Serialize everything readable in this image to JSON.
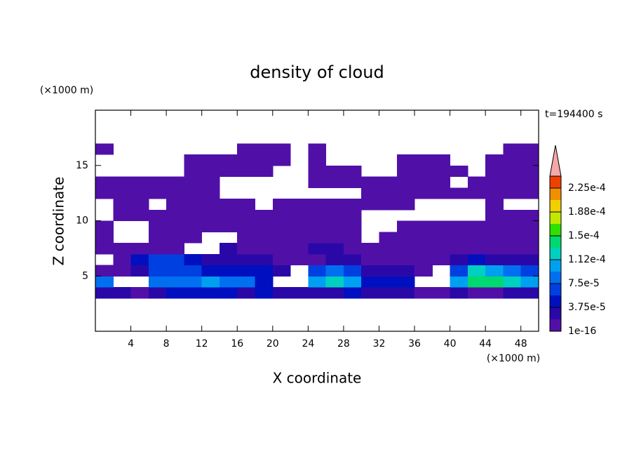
{
  "chart_data": {
    "type": "contour",
    "title": "density of cloud",
    "x_label": "X coordinate",
    "y_label": "Z coordinate",
    "x_unit": "(×1000 m)",
    "y_unit": "(×1000 m)",
    "annotation": "t=194400 s",
    "xlim": [
      0,
      50
    ],
    "ylim": [
      0,
      20
    ],
    "xticks": [
      4,
      8,
      12,
      16,
      20,
      24,
      28,
      32,
      36,
      40,
      44,
      48
    ],
    "yticks": [
      5,
      10,
      15
    ],
    "x": [
      1,
      3,
      5,
      7,
      9,
      11,
      13,
      15,
      17,
      19,
      21,
      23,
      25,
      27,
      29,
      31,
      33,
      35,
      37,
      39,
      41,
      43,
      45,
      47,
      49
    ],
    "y": [
      3.5,
      4.5,
      5.5,
      6.5,
      7.5,
      8.5,
      9.5,
      10.5,
      11.5,
      12.5,
      13.5,
      14.5,
      15.5,
      16.5
    ],
    "values": [
      [
        2.5e-05,
        2.5e-05,
        1e-05,
        2.5e-05,
        4.5e-05,
        4.5e-05,
        4.5e-05,
        4.5e-05,
        2.5e-05,
        4.5e-05,
        2.5e-05,
        2.5e-05,
        2.5e-05,
        2.5e-05,
        4.5e-05,
        2.5e-05,
        2.5e-05,
        2.5e-05,
        1e-05,
        1e-05,
        2.5e-05,
        1e-05,
        1e-05,
        2.5e-05,
        2.5e-05
      ],
      [
        8e-05,
        null,
        null,
        8e-05,
        8e-05,
        8e-05,
        0.0001,
        8e-05,
        8e-05,
        4.5e-05,
        null,
        null,
        0.0001,
        0.00012,
        0.0001,
        4.5e-05,
        4.5e-05,
        4.5e-05,
        null,
        null,
        0.0001,
        0.00014,
        0.00014,
        0.00012,
        0.0001
      ],
      [
        1e-05,
        1e-05,
        2.5e-05,
        6e-05,
        6e-05,
        6e-05,
        4.5e-05,
        4.5e-05,
        4.5e-05,
        4.5e-05,
        2.5e-05,
        null,
        6e-05,
        8e-05,
        6e-05,
        2.5e-05,
        2.5e-05,
        2.5e-05,
        1e-05,
        null,
        6e-05,
        0.00012,
        0.0001,
        8e-05,
        6e-05
      ],
      [
        null,
        1e-05,
        4.5e-05,
        6e-05,
        6e-05,
        4.5e-05,
        2.5e-05,
        2.5e-05,
        2.5e-05,
        2.5e-05,
        1e-05,
        1e-05,
        1e-05,
        2.5e-05,
        2.5e-05,
        1e-05,
        1e-05,
        1e-05,
        1e-05,
        1e-05,
        2.5e-05,
        4.5e-05,
        2.5e-05,
        2.5e-05,
        2.5e-05
      ],
      [
        1e-05,
        1e-05,
        1e-05,
        1e-05,
        1e-05,
        null,
        null,
        2.5e-05,
        1e-05,
        1e-05,
        1e-05,
        1e-05,
        2.5e-05,
        2.5e-05,
        1e-05,
        1e-05,
        1e-05,
        1e-05,
        1e-05,
        1e-05,
        1e-05,
        1e-05,
        1e-05,
        1e-05,
        1e-05
      ],
      [
        1e-05,
        null,
        null,
        1e-05,
        1e-05,
        1e-05,
        null,
        null,
        1e-05,
        1e-05,
        1e-05,
        1e-05,
        1e-05,
        1e-05,
        1e-05,
        null,
        1e-05,
        1e-05,
        1e-05,
        1e-05,
        1e-05,
        1e-05,
        1e-05,
        1e-05,
        1e-05
      ],
      [
        1e-05,
        null,
        null,
        1e-05,
        1e-05,
        1e-05,
        1e-05,
        1e-05,
        1e-05,
        1e-05,
        1e-05,
        1e-05,
        1e-05,
        1e-05,
        1e-05,
        null,
        null,
        1e-05,
        1e-05,
        1e-05,
        1e-05,
        1e-05,
        1e-05,
        1e-05,
        1e-05
      ],
      [
        null,
        1e-05,
        1e-05,
        1e-05,
        1e-05,
        1e-05,
        1e-05,
        1e-05,
        1e-05,
        1e-05,
        1e-05,
        1e-05,
        1e-05,
        1e-05,
        1e-05,
        null,
        null,
        null,
        null,
        null,
        null,
        null,
        1e-05,
        1e-05,
        1e-05
      ],
      [
        null,
        1e-05,
        1e-05,
        null,
        1e-05,
        1e-05,
        1e-05,
        1e-05,
        1e-05,
        null,
        1e-05,
        1e-05,
        1e-05,
        1e-05,
        1e-05,
        1e-05,
        1e-05,
        1e-05,
        null,
        null,
        null,
        null,
        1e-05,
        null,
        null
      ],
      [
        1e-05,
        1e-05,
        1e-05,
        1e-05,
        1e-05,
        1e-05,
        1e-05,
        null,
        null,
        null,
        null,
        null,
        null,
        null,
        null,
        1e-05,
        1e-05,
        1e-05,
        1e-05,
        1e-05,
        1e-05,
        1e-05,
        1e-05,
        1e-05,
        1e-05
      ],
      [
        1e-05,
        1e-05,
        1e-05,
        1e-05,
        1e-05,
        1e-05,
        1e-05,
        null,
        null,
        null,
        null,
        null,
        1e-05,
        1e-05,
        1e-05,
        1e-05,
        1e-05,
        1e-05,
        1e-05,
        1e-05,
        null,
        1e-05,
        1e-05,
        1e-05,
        1e-05
      ],
      [
        null,
        null,
        null,
        null,
        null,
        1e-05,
        1e-05,
        1e-05,
        1e-05,
        1e-05,
        null,
        null,
        1e-05,
        1e-05,
        1e-05,
        null,
        null,
        1e-05,
        1e-05,
        1e-05,
        1e-05,
        null,
        1e-05,
        1e-05,
        1e-05
      ],
      [
        null,
        null,
        null,
        null,
        null,
        1e-05,
        1e-05,
        1e-05,
        1e-05,
        1e-05,
        1e-05,
        null,
        1e-05,
        null,
        null,
        null,
        null,
        1e-05,
        1e-05,
        1e-05,
        null,
        null,
        1e-05,
        1e-05,
        1e-05
      ],
      [
        1e-05,
        null,
        null,
        null,
        null,
        null,
        null,
        null,
        1e-05,
        1e-05,
        1e-05,
        null,
        1e-05,
        null,
        null,
        null,
        null,
        null,
        null,
        null,
        null,
        null,
        null,
        1e-05,
        1e-05
      ]
    ],
    "colorbar": {
      "ticks": [
        1e-16,
        {
          "value": 3.75e-05,
          "label": "3.75e-5"
        },
        {
          "value": 7.5e-05,
          "label": "7.5e-5"
        },
        {
          "value": 0.000112,
          "label": "1.12e-4"
        },
        {
          "value": 0.00015,
          "label": "1.5e-4"
        },
        {
          "value": 0.000188,
          "label": "1.88e-4"
        },
        {
          "value": 0.000225,
          "label": "2.25e-4"
        }
      ],
      "colors": [
        "#5010a8",
        "#2a08a8",
        "#0010c0",
        "#0040e0",
        "#0070f0",
        "#00a0f0",
        "#00d0c0",
        "#00d870",
        "#30e000",
        "#c0e800",
        "#f0d000",
        "#f09000",
        "#f04000"
      ],
      "over_color": "#f4a8a8"
    }
  }
}
